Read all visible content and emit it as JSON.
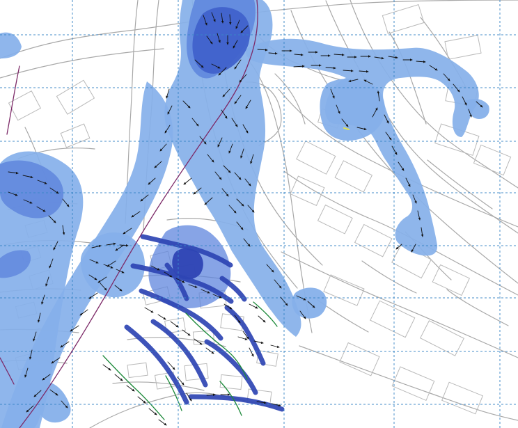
{
  "map": {
    "colors": {
      "background": "#ffffff",
      "roads": "#a8a8a8",
      "building_outlines": "#b9b9b9",
      "grid": "#3a86c8",
      "flood_light": "#86b0ea",
      "flood_medium": "#5f86dd",
      "flood_deep": "#4062cb",
      "flood_very_deep": "#2e45b4",
      "flow_arrows": "#111111",
      "railway": "#7d2a68",
      "green_network": "#1e8a3b",
      "yellow_marker": "#e3e34f"
    }
  }
}
